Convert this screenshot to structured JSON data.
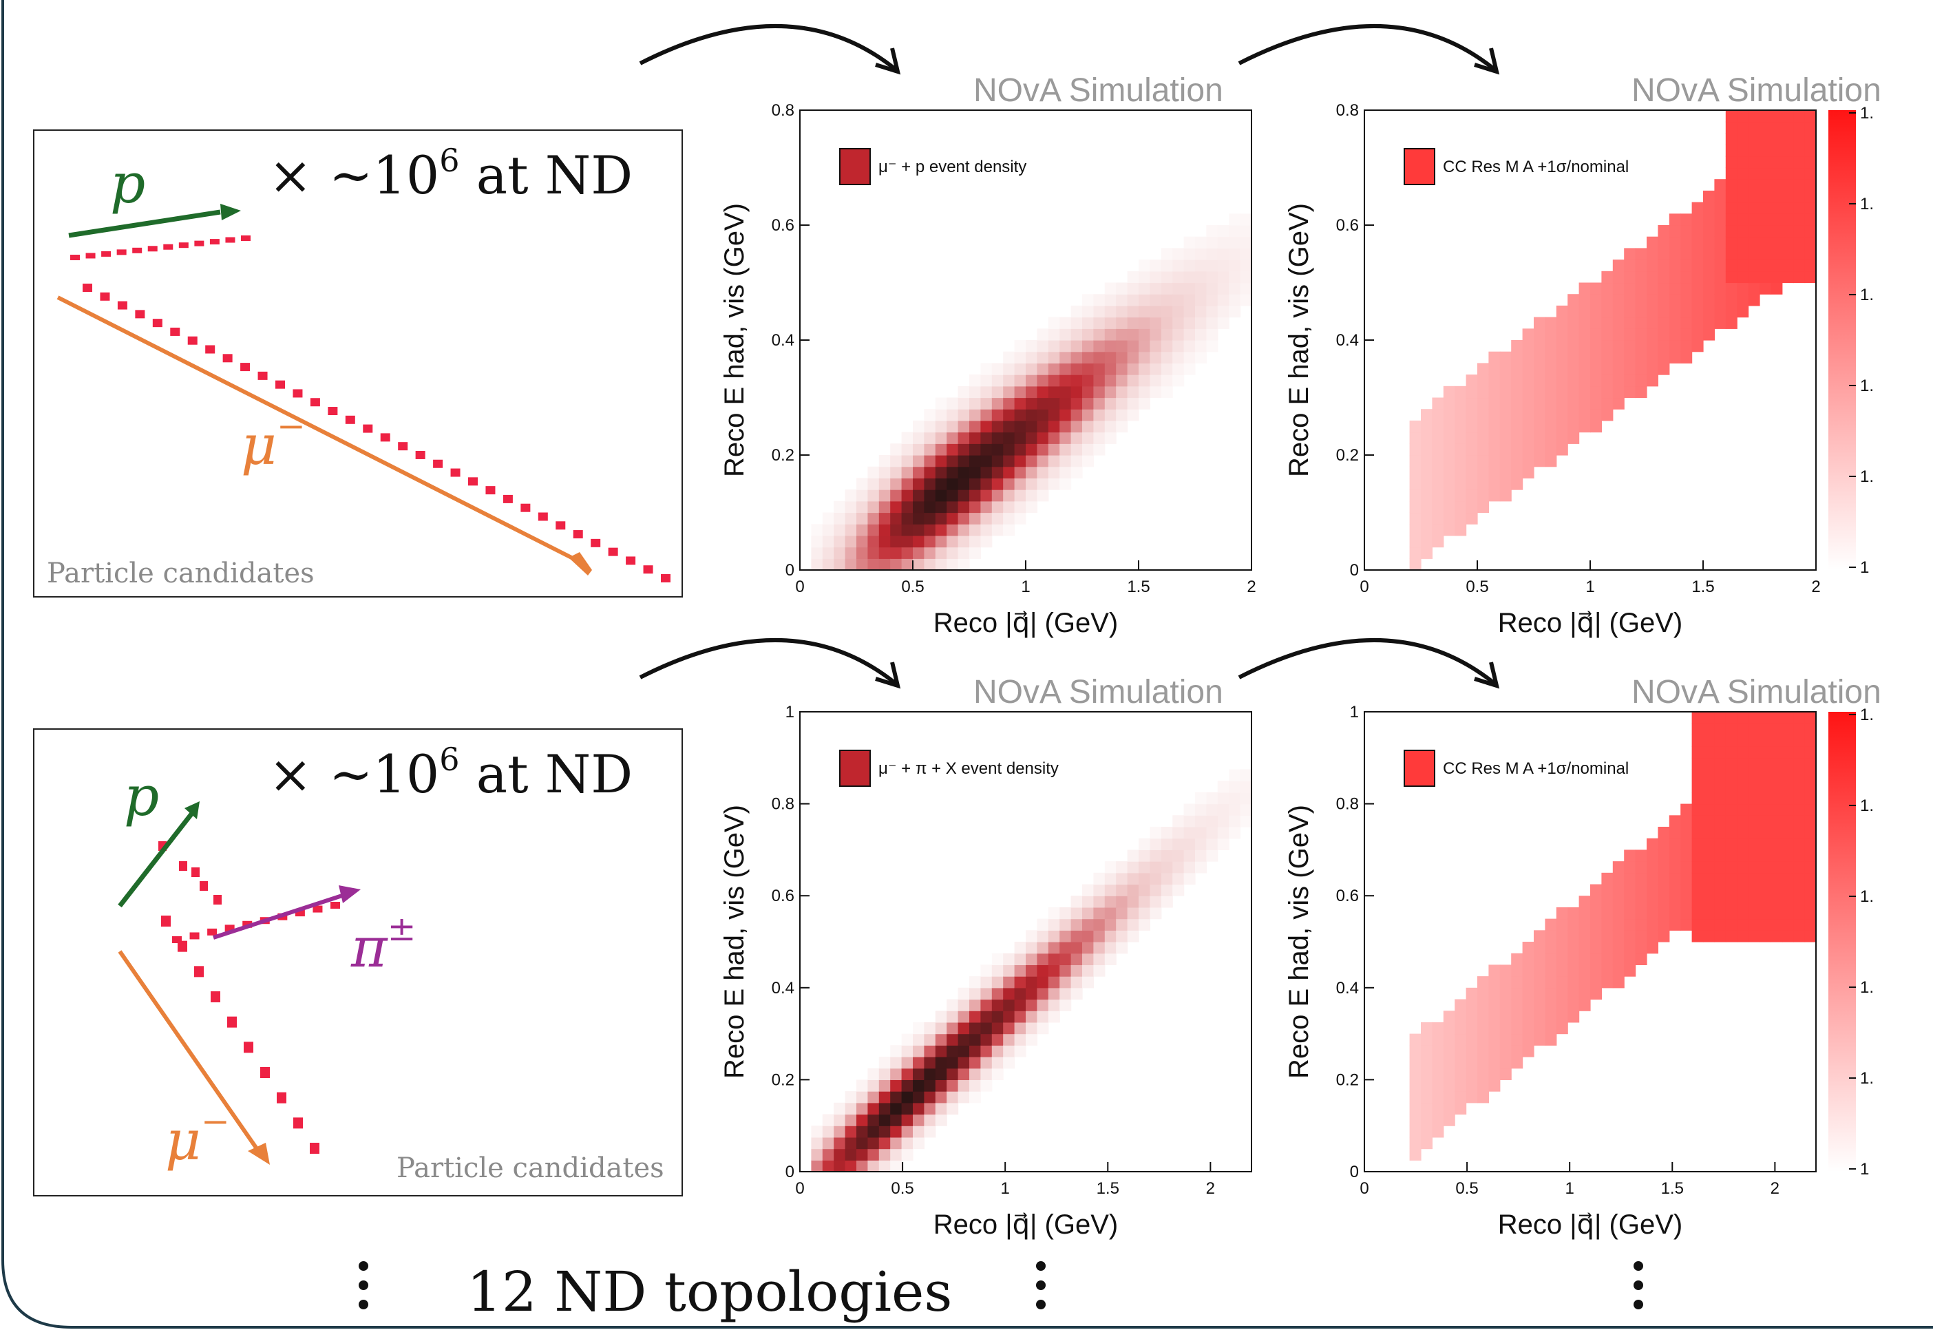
{
  "topologies": [
    {
      "multiplier_prefix": "× ∼10",
      "multiplier_exp": "6",
      "multiplier_suffix": "at ND",
      "candidates_label": "Particle candidates",
      "particles": [
        {
          "symbol": "p",
          "sign": "",
          "color": "#1f6b2a"
        },
        {
          "symbol": "μ",
          "sign": "−",
          "color": "#e8803a"
        }
      ]
    },
    {
      "multiplier_prefix": "× ∼10",
      "multiplier_exp": "6",
      "multiplier_suffix": "at ND",
      "candidates_label": "Particle candidates",
      "particles": [
        {
          "symbol": "p",
          "sign": "",
          "color": "#1f6b2a"
        },
        {
          "symbol": "π",
          "sign": "±",
          "color": "#9b2d96"
        },
        {
          "symbol": "μ",
          "sign": "−",
          "color": "#e8803a"
        }
      ]
    }
  ],
  "hit_color": "#ee2244",
  "sim_label": "NOvA Simulation",
  "footer_text": "12 ND topologies",
  "colors": {
    "density_max": "#2a1414",
    "density_mid": "#c0262e",
    "ratio_max": "#ff1414",
    "arrow": "#111111"
  },
  "chart_data": [
    {
      "id": "density-1",
      "type": "heatmap",
      "xlabel": "Reco |q⃗| (GeV)",
      "ylabel": "Reco E had, vis (GeV)",
      "legend": "μ⁻ + p event density",
      "xlim": [
        0,
        2
      ],
      "ylim": [
        0,
        0.8
      ],
      "xticks": [
        0,
        0.5,
        1,
        1.5,
        2
      ],
      "xtick_labels": [
        "0",
        "0.5",
        "1",
        "1.5",
        "2"
      ],
      "yticks": [
        0,
        0.2,
        0.4,
        0.6,
        0.8
      ],
      "ytick_labels": [
        "0",
        "0.2",
        "0.4",
        "0.6",
        "0.8"
      ],
      "peak": [
        0.65,
        0.14
      ],
      "band_slope": 0.3,
      "band_width": 0.06,
      "spread": 0.45
    },
    {
      "id": "ratio-1",
      "type": "heatmap",
      "xlabel": "Reco |q⃗| (GeV)",
      "ylabel": "Reco E had, vis (GeV)",
      "legend": "CC Res M A +1σ/nominal",
      "xlim": [
        0,
        2
      ],
      "ylim": [
        0,
        0.8
      ],
      "xticks": [
        0,
        0.5,
        1,
        1.5,
        2
      ],
      "xtick_labels": [
        "0",
        "0.5",
        "1",
        "1.5",
        "2"
      ],
      "yticks": [
        0,
        0.2,
        0.4,
        0.6,
        0.8
      ],
      "ytick_labels": [
        "0",
        "0.2",
        "0.4",
        "0.6",
        "0.8"
      ],
      "colorbar_labels": [
        "1.",
        "1.",
        "1.",
        "1.",
        "1.",
        "1"
      ]
    },
    {
      "id": "density-2",
      "type": "heatmap",
      "xlabel": "Reco |q⃗| (GeV)",
      "ylabel": "Reco E had, vis (GeV)",
      "legend": "μ⁻ + π + X event density",
      "xlim": [
        0,
        2.2
      ],
      "ylim": [
        0,
        1
      ],
      "xticks": [
        0,
        0.5,
        1,
        1.5,
        2
      ],
      "xtick_labels": [
        "0",
        "0.5",
        "1",
        "1.5",
        "2"
      ],
      "yticks": [
        0,
        0.2,
        0.4,
        0.6,
        0.8,
        1
      ],
      "ytick_labels": [
        "0",
        "0.2",
        "0.4",
        "0.6",
        "0.8",
        "1"
      ],
      "peak": [
        0.5,
        0.15
      ],
      "band_slope": 0.4,
      "band_width": 0.05,
      "spread": 0.55
    },
    {
      "id": "ratio-2",
      "type": "heatmap",
      "xlabel": "Reco |q⃗| (GeV)",
      "ylabel": "Reco E had, vis (GeV)",
      "legend": "CC Res M A +1σ/nominal",
      "xlim": [
        0,
        2.2
      ],
      "ylim": [
        0,
        1
      ],
      "xticks": [
        0,
        0.5,
        1,
        1.5,
        2
      ],
      "xtick_labels": [
        "0",
        "0.5",
        "1",
        "1.5",
        "2"
      ],
      "yticks": [
        0,
        0.2,
        0.4,
        0.6,
        0.8,
        1
      ],
      "ytick_labels": [
        "0",
        "0.2",
        "0.4",
        "0.6",
        "0.8",
        "1"
      ],
      "colorbar_labels": [
        "1.",
        "1.",
        "1.",
        "1.",
        "1.",
        "1"
      ]
    }
  ]
}
